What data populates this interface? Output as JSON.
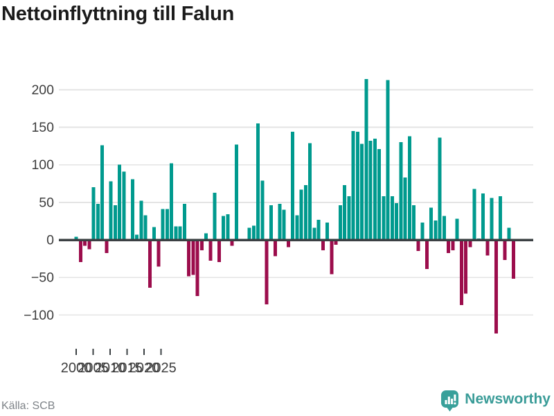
{
  "page": {
    "title": "Nettoinflyttning till Falun",
    "source": "Källa: SCB",
    "brand": "Newsworthy"
  },
  "chart_data": {
    "type": "bar",
    "title": "Nettoinflyttning till Falun",
    "xlabel": "",
    "ylabel": "",
    "grid": true,
    "ylim": [
      -130,
      225
    ],
    "yticks": [
      200,
      150,
      100,
      50,
      0,
      -50,
      -100
    ],
    "xtick_years": [
      2000,
      2005,
      2010,
      2015,
      2020,
      2025
    ],
    "colors": {
      "positive": "#009a8e",
      "negative": "#9c0d4c",
      "axis": "#3b4043",
      "gridline": "#e4e4e4",
      "tick_label": "#3d3d3d"
    },
    "x_labels": [
      "2000 Q1",
      "2000 Q2",
      "2000 Q3",
      "2000 Q4",
      "2001 Q1",
      "2001 Q2",
      "2001 Q3",
      "2001 Q4",
      "2002 Q1",
      "2002 Q2",
      "2002 Q3",
      "2002 Q4",
      "2003 Q1",
      "2003 Q2",
      "2003 Q3",
      "2003 Q4",
      "2004 Q1",
      "2004 Q2",
      "2004 Q3",
      "2004 Q4",
      "2005 Q1",
      "2005 Q2",
      "2005 Q3",
      "2005 Q4",
      "2006 Q1",
      "2006 Q2",
      "2006 Q3",
      "2006 Q4",
      "2007 Q1",
      "2007 Q2",
      "2007 Q3",
      "2007 Q4",
      "2008 Q1",
      "2008 Q2",
      "2008 Q3",
      "2008 Q4",
      "2009 Q1",
      "2009 Q2",
      "2009 Q3",
      "2009 Q4",
      "2010 Q1",
      "2010 Q2",
      "2010 Q3",
      "2010 Q4",
      "2011 Q1",
      "2011 Q2",
      "2011 Q3",
      "2011 Q4",
      "2012 Q1",
      "2012 Q2",
      "2012 Q3",
      "2012 Q4",
      "2013 Q1",
      "2013 Q2",
      "2013 Q3",
      "2013 Q4",
      "2014 Q1",
      "2014 Q2",
      "2014 Q3",
      "2014 Q4",
      "2015 Q1",
      "2015 Q2",
      "2015 Q3",
      "2015 Q4",
      "2016 Q1",
      "2016 Q2",
      "2016 Q3",
      "2016 Q4",
      "2017 Q1",
      "2017 Q2",
      "2017 Q3",
      "2017 Q4",
      "2018 Q1",
      "2018 Q2",
      "2018 Q3",
      "2018 Q4",
      "2019 Q1",
      "2019 Q2",
      "2019 Q3",
      "2019 Q4",
      "2020 Q1",
      "2020 Q2",
      "2020 Q3",
      "2020 Q4",
      "2021 Q1",
      "2021 Q2",
      "2021 Q3",
      "2021 Q4",
      "2022 Q1",
      "2022 Q2",
      "2022 Q3",
      "2022 Q4",
      "2023 Q1",
      "2023 Q2",
      "2023 Q3",
      "2023 Q4",
      "2024 Q1",
      "2024 Q2",
      "2024 Q3",
      "2024 Q4",
      "2025 Q1",
      "2025 Q2"
    ],
    "values": [
      4,
      -28,
      -6,
      -11,
      70,
      48,
      126,
      -16,
      78,
      46,
      100,
      91,
      0,
      81,
      7,
      52,
      33,
      -62,
      17,
      -34,
      41,
      41,
      102,
      18,
      18,
      48,
      -47,
      -45,
      -73,
      -12,
      9,
      -26,
      63,
      -28,
      32,
      34,
      -6,
      127,
      0,
      0,
      16,
      19,
      155,
      79,
      -84,
      46,
      -20,
      48,
      40,
      -8,
      144,
      33,
      67,
      73,
      129,
      16,
      27,
      -12,
      23,
      -44,
      -5,
      46,
      73,
      58,
      145,
      144,
      128,
      214,
      132,
      135,
      121,
      58,
      213,
      58,
      49,
      130,
      83,
      138,
      46,
      -13,
      23,
      -37,
      43,
      26,
      136,
      32,
      -16,
      -12,
      28,
      -85,
      -70,
      -8,
      68,
      2,
      62,
      -19,
      56,
      -123,
      58,
      -25,
      16,
      -50
    ],
    "source": "Källa: SCB",
    "brand": {
      "name": "Newsworthy",
      "text_color": "#3a9c98",
      "bubble_color": "#38a09a"
    }
  }
}
